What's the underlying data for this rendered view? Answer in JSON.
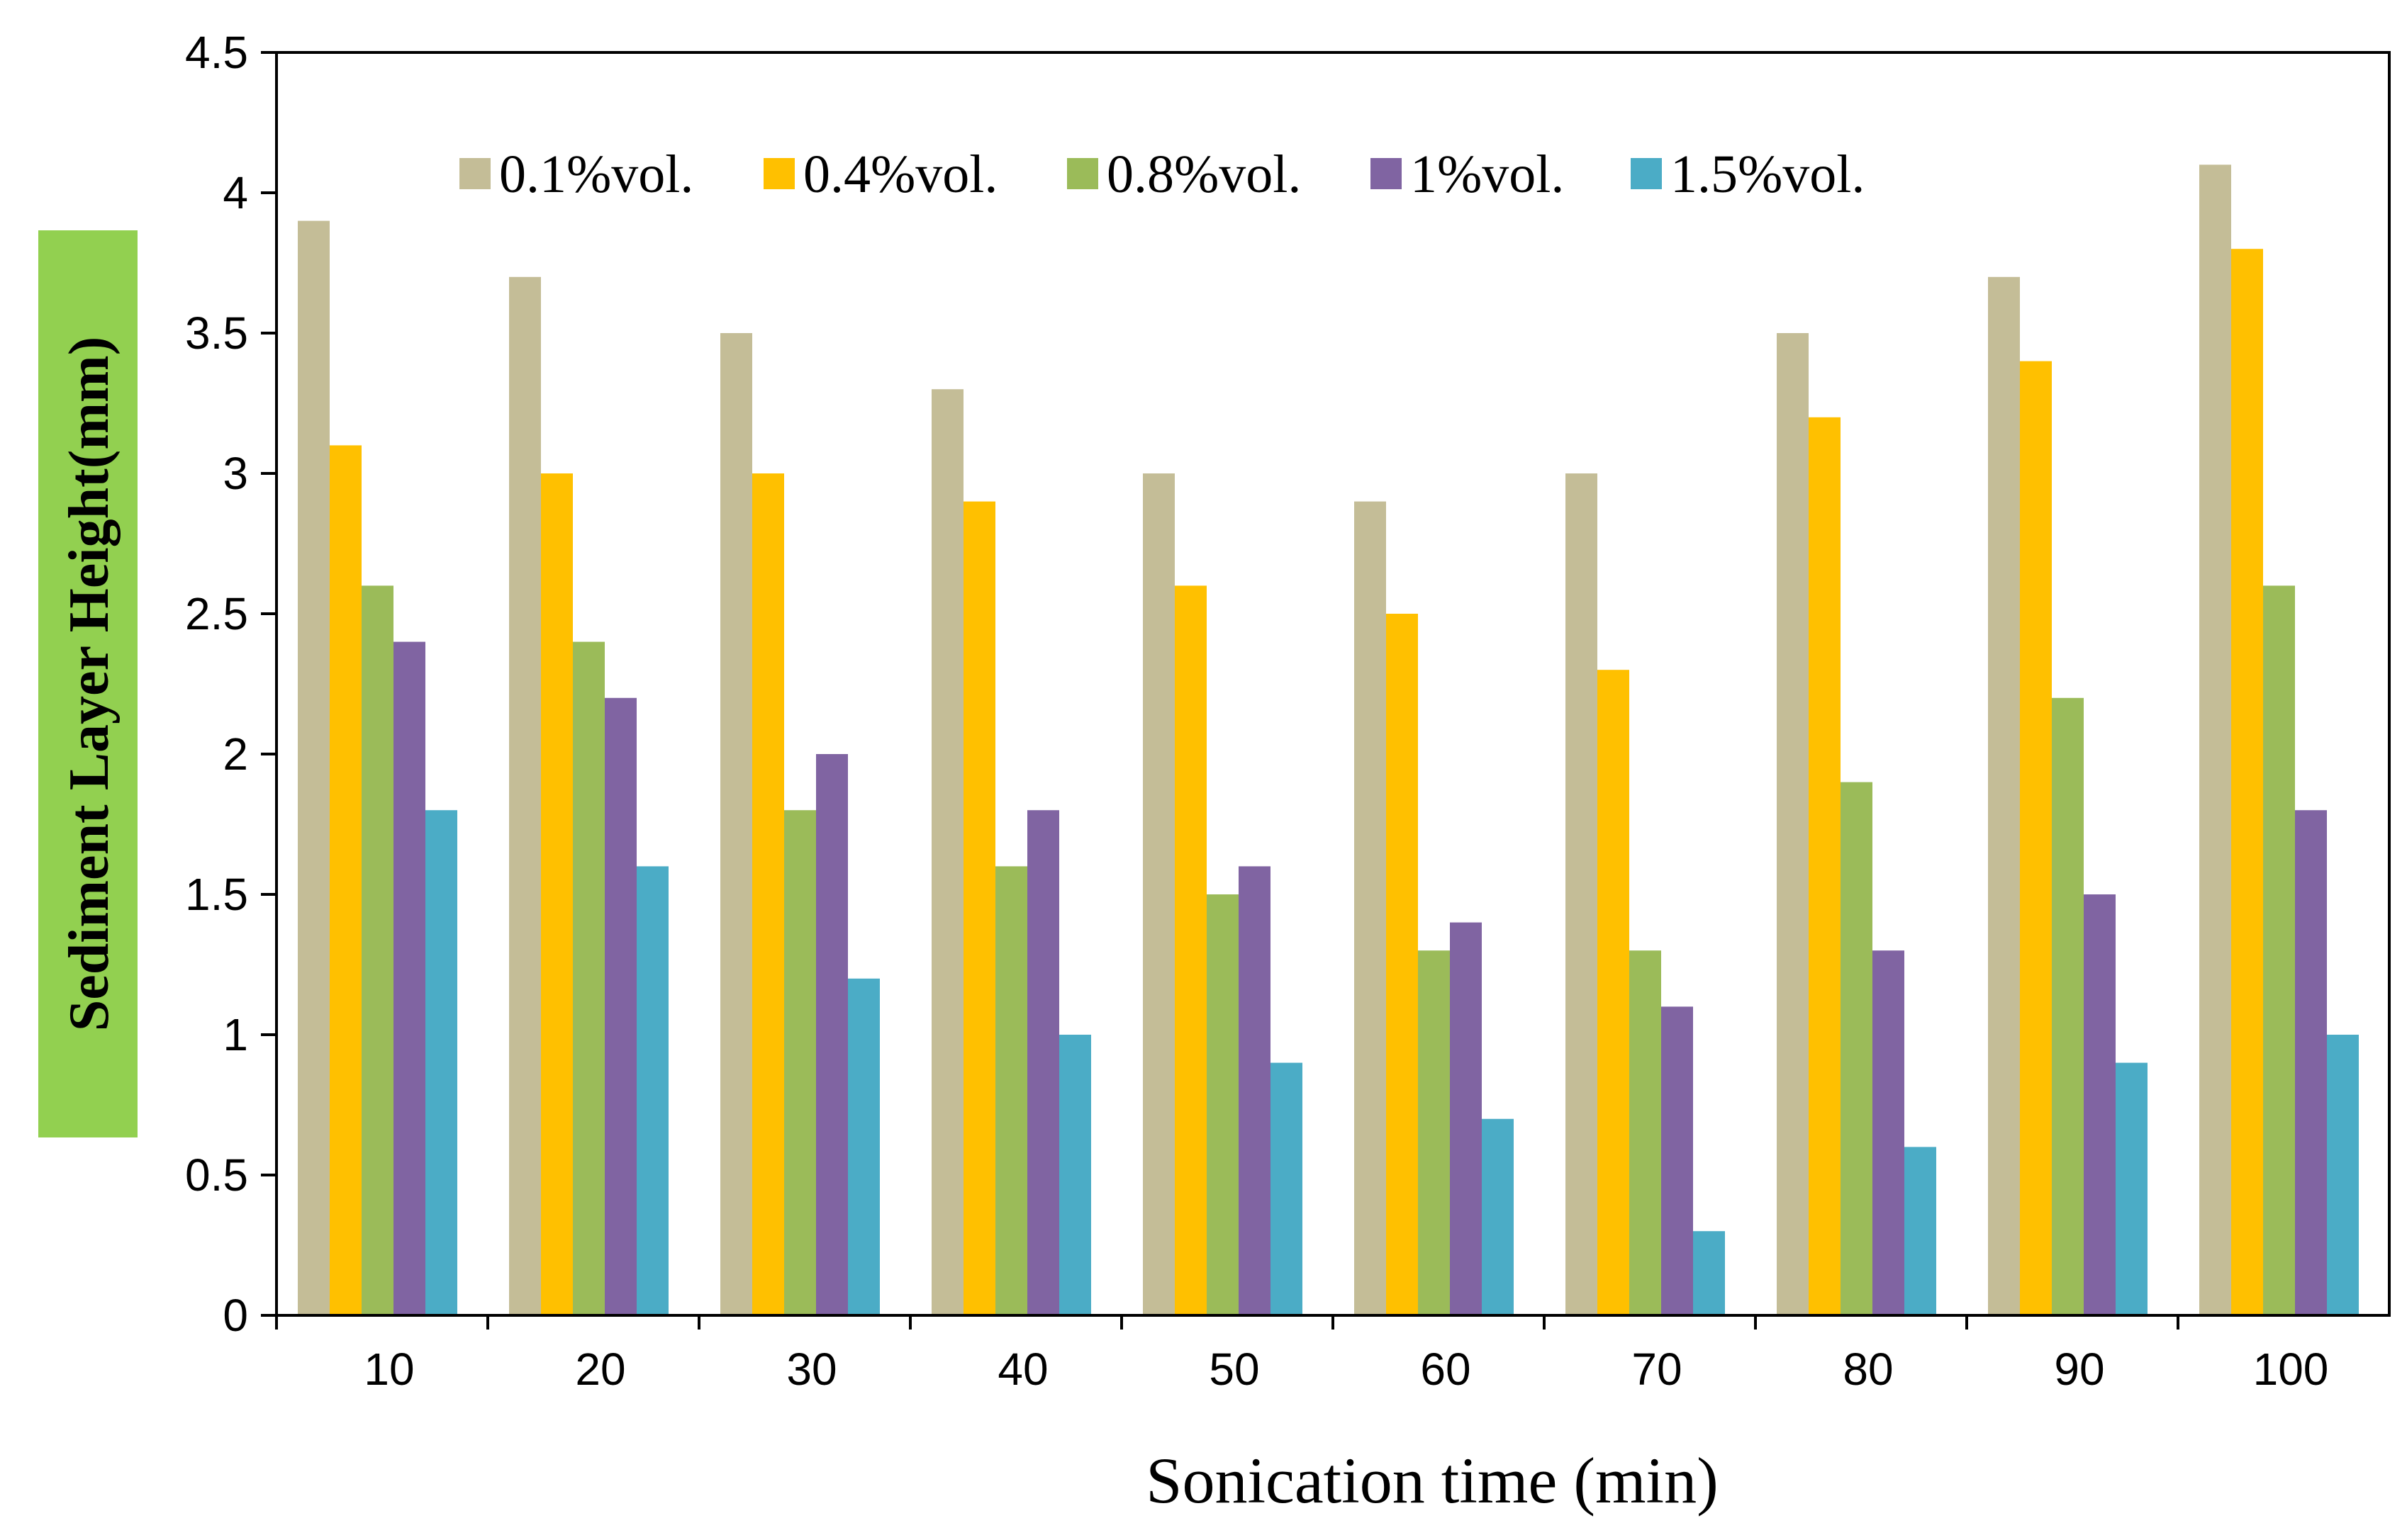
{
  "chart_data": {
    "type": "bar",
    "xlabel": "Sonication time (min)",
    "ylabel": "Sediment Layer Height(mm)",
    "ylabel_highlight": "#92d050",
    "categories": [
      "10",
      "20",
      "30",
      "40",
      "50",
      "60",
      "70",
      "80",
      "90",
      "100"
    ],
    "ylim": [
      0,
      4.5
    ],
    "yticks": [
      "0",
      "0.5",
      "1",
      "1.5",
      "2",
      "2.5",
      "3",
      "3.5",
      "4",
      "4.5"
    ],
    "legend_position": "top",
    "grid": false,
    "series": [
      {
        "name": "0.1%vol.",
        "color": "#c4bd97",
        "values": [
          3.9,
          3.7,
          3.5,
          3.3,
          3.0,
          2.9,
          3.0,
          3.5,
          3.7,
          4.1
        ]
      },
      {
        "name": "0.4%vol.",
        "color": "#ffc000",
        "values": [
          3.1,
          3.0,
          3.0,
          2.9,
          2.6,
          2.5,
          2.3,
          3.2,
          3.4,
          3.8
        ]
      },
      {
        "name": "0.8%vol.",
        "color": "#9bbb59",
        "values": [
          2.6,
          2.4,
          1.8,
          1.6,
          1.5,
          1.3,
          1.3,
          1.9,
          2.2,
          2.6
        ]
      },
      {
        "name": "1%vol.",
        "color": "#8064a2",
        "values": [
          2.4,
          2.2,
          2.0,
          1.8,
          1.6,
          1.4,
          1.1,
          1.3,
          1.5,
          1.8
        ]
      },
      {
        "name": "1.5%vol.",
        "color": "#4bacc6",
        "values": [
          1.8,
          1.6,
          1.2,
          1.0,
          0.9,
          0.7,
          0.3,
          0.6,
          0.9,
          1.0
        ]
      }
    ]
  }
}
